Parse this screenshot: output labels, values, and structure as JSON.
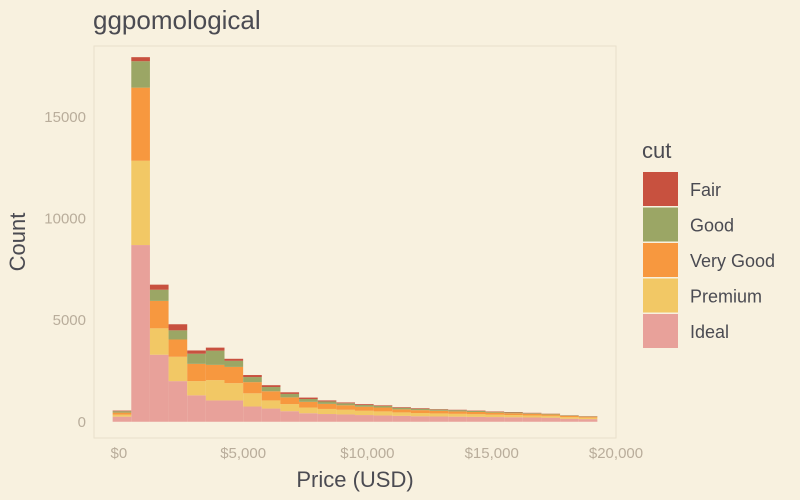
{
  "chart_data": {
    "type": "bar",
    "subtype": "stacked-histogram",
    "title": "ggpomological",
    "xlabel": "Price (USD)",
    "ylabel": "Count",
    "xlim": [
      -1000,
      20000
    ],
    "ylim": [
      -800,
      18500
    ],
    "x_ticks": [
      0,
      5000,
      10000,
      15000,
      20000
    ],
    "x_tick_labels": [
      "$0",
      "$5,000",
      "$10,000",
      "$15,000",
      "$20,000"
    ],
    "y_ticks": [
      0,
      5000,
      10000,
      15000
    ],
    "y_tick_labels": [
      "0",
      "5000",
      "10000",
      "15000"
    ],
    "bin_edges": [
      -250,
      500,
      1250,
      2000,
      2750,
      3500,
      4250,
      5000,
      5750,
      6500,
      7250,
      8000,
      8750,
      9500,
      10250,
      11000,
      11750,
      12500,
      13250,
      14000,
      14750,
      15500,
      16250,
      17000,
      17750,
      18500,
      19250
    ],
    "legend": {
      "title": "cut",
      "position": "right"
    },
    "series": [
      {
        "name": "Ideal",
        "color": "#e8a19a",
        "values": [
          250,
          8700,
          3300,
          2000,
          1300,
          1050,
          1050,
          750,
          650,
          520,
          420,
          380,
          360,
          330,
          310,
          290,
          270,
          260,
          250,
          240,
          230,
          220,
          210,
          200,
          150,
          130
        ]
      },
      {
        "name": "Premium",
        "color": "#f2c865",
        "values": [
          100,
          4150,
          1300,
          1200,
          700,
          1000,
          850,
          650,
          400,
          350,
          280,
          250,
          230,
          210,
          200,
          170,
          160,
          150,
          140,
          130,
          120,
          110,
          100,
          90,
          80,
          70
        ]
      },
      {
        "name": "Very Good",
        "color": "#f7983f",
        "values": [
          100,
          3600,
          1350,
          850,
          850,
          750,
          800,
          550,
          450,
          330,
          280,
          250,
          220,
          200,
          190,
          150,
          140,
          130,
          120,
          110,
          100,
          90,
          80,
          70,
          60,
          50
        ]
      },
      {
        "name": "Good",
        "color": "#9ba665",
        "values": [
          70,
          1300,
          550,
          450,
          500,
          700,
          300,
          250,
          210,
          170,
          140,
          120,
          100,
          90,
          80,
          80,
          70,
          60,
          60,
          50,
          40,
          40,
          30,
          30,
          20,
          20
        ]
      },
      {
        "name": "Fair",
        "color": "#c8513f",
        "values": [
          30,
          200,
          250,
          300,
          160,
          150,
          100,
          100,
          90,
          80,
          70,
          50,
          40,
          40,
          30,
          30,
          30,
          20,
          20,
          20,
          20,
          20,
          20,
          10,
          10,
          10
        ]
      }
    ]
  }
}
